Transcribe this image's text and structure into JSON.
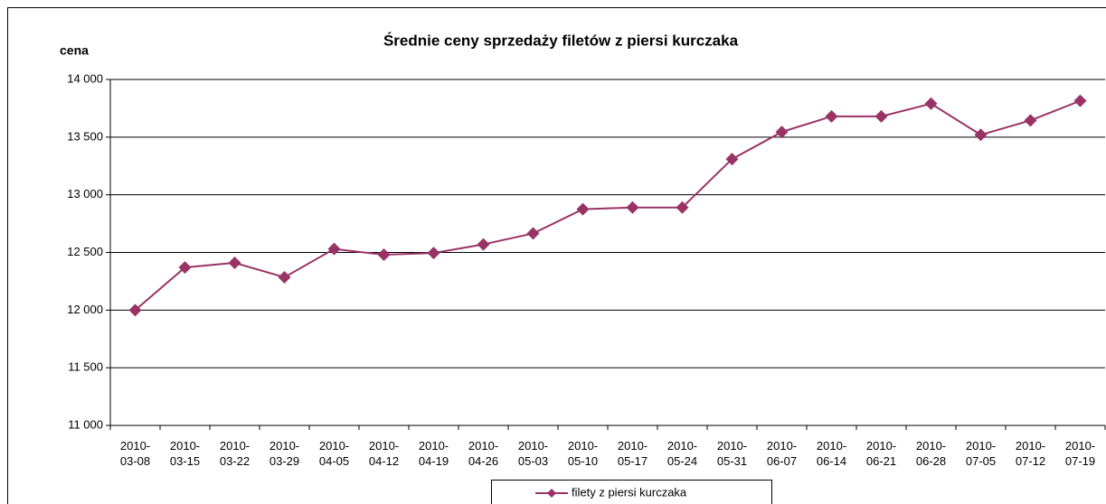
{
  "chart_data": {
    "type": "line",
    "title": "Średnie ceny sprzedaży filetów z piersi kurczaka",
    "y_label": "cena",
    "categories": [
      "2010-03-08",
      "2010-03-15",
      "2010-03-22",
      "2010-03-29",
      "2010-04-05",
      "2010-04-12",
      "2010-04-19",
      "2010-04-26",
      "2010-05-03",
      "2010-05-10",
      "2010-05-17",
      "2010-05-24",
      "2010-05-31",
      "2010-06-07",
      "2010-06-14",
      "2010-06-21",
      "2010-06-28",
      "2010-07-05",
      "2010-07-12",
      "2010-07-19"
    ],
    "series": [
      {
        "name": "filety z piersi kurczaka",
        "color": "#993366",
        "values": [
          12000,
          12370,
          12410,
          12285,
          12530,
          12480,
          12495,
          12570,
          12665,
          12875,
          12890,
          12890,
          13310,
          13545,
          13680,
          13680,
          13790,
          13520,
          13645,
          13815
        ]
      }
    ],
    "ylim": [
      11000,
      14000
    ],
    "yticks": [
      {
        "value": 11000,
        "label": "11 000"
      },
      {
        "value": 11500,
        "label": "11 500"
      },
      {
        "value": 12000,
        "label": "12 000"
      },
      {
        "value": 12500,
        "label": "12 500"
      },
      {
        "value": 13000,
        "label": "13 000"
      },
      {
        "value": 13500,
        "label": "13 500"
      },
      {
        "value": 14000,
        "label": "14 000"
      }
    ],
    "grid": true,
    "legend": "bottom"
  }
}
